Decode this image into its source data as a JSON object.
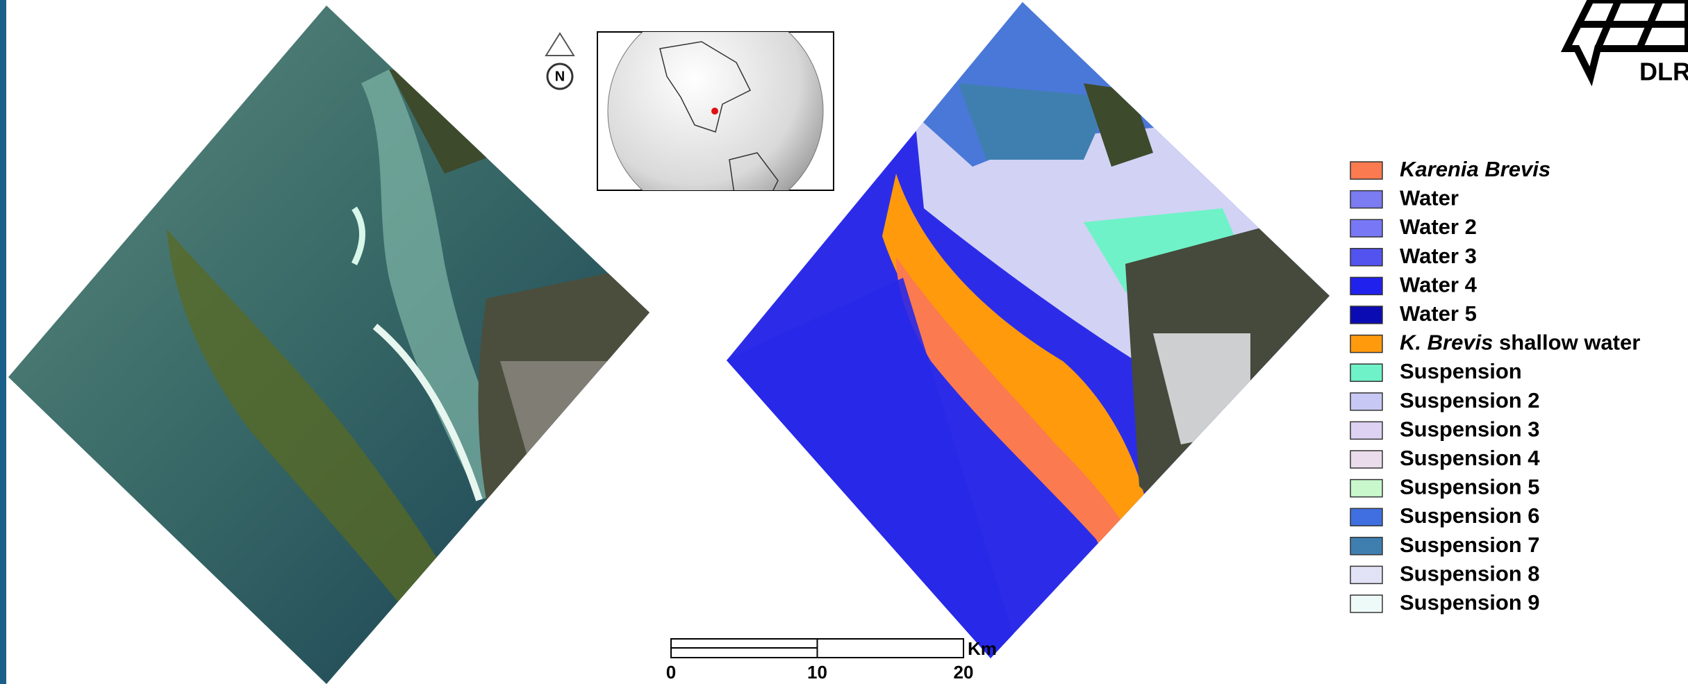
{
  "north_arrow": {
    "label": "N"
  },
  "logo": {
    "text": "DLR"
  },
  "scale_bar": {
    "ticks": [
      0,
      10,
      20
    ],
    "unit": "Km"
  },
  "legend": {
    "items": [
      {
        "parts": [
          {
            "text": "Karenia Brevis",
            "italic": true
          }
        ],
        "color": "#fb7a50"
      },
      {
        "parts": [
          {
            "text": "Water",
            "italic": false
          }
        ],
        "color": "#7b7bf2"
      },
      {
        "parts": [
          {
            "text": "Water 2",
            "italic": false
          }
        ],
        "color": "#7878f6"
      },
      {
        "parts": [
          {
            "text": "Water 3",
            "italic": false
          }
        ],
        "color": "#5353f0"
      },
      {
        "parts": [
          {
            "text": "Water 4",
            "italic": false
          }
        ],
        "color": "#2121ee"
      },
      {
        "parts": [
          {
            "text": "Water 5",
            "italic": false
          }
        ],
        "color": "#0b0bb4"
      },
      {
        "parts": [
          {
            "text": "K. Brevis",
            "italic": true
          },
          {
            "text": " shallow water",
            "italic": false
          }
        ],
        "color": "#ff9a0c"
      },
      {
        "parts": [
          {
            "text": "Suspension",
            "italic": false
          }
        ],
        "color": "#6ff2c8"
      },
      {
        "parts": [
          {
            "text": "Suspension 2",
            "italic": false
          }
        ],
        "color": "#c8c8f4"
      },
      {
        "parts": [
          {
            "text": "Suspension 3",
            "italic": false
          }
        ],
        "color": "#ddd2f2"
      },
      {
        "parts": [
          {
            "text": "Suspension 4",
            "italic": false
          }
        ],
        "color": "#eadcea"
      },
      {
        "parts": [
          {
            "text": "Suspension 5",
            "italic": false
          }
        ],
        "color": "#c8f8cc"
      },
      {
        "parts": [
          {
            "text": "Suspension 6",
            "italic": false
          }
        ],
        "color": "#3f6fe0"
      },
      {
        "parts": [
          {
            "text": "Suspension 7",
            "italic": false
          }
        ],
        "color": "#3f7fb0"
      },
      {
        "parts": [
          {
            "text": "Suspension 8",
            "italic": false
          }
        ],
        "color": "#e2e2f6"
      },
      {
        "parts": [
          {
            "text": "Suspension 9",
            "italic": false
          }
        ],
        "color": "#eefaf8"
      }
    ]
  }
}
